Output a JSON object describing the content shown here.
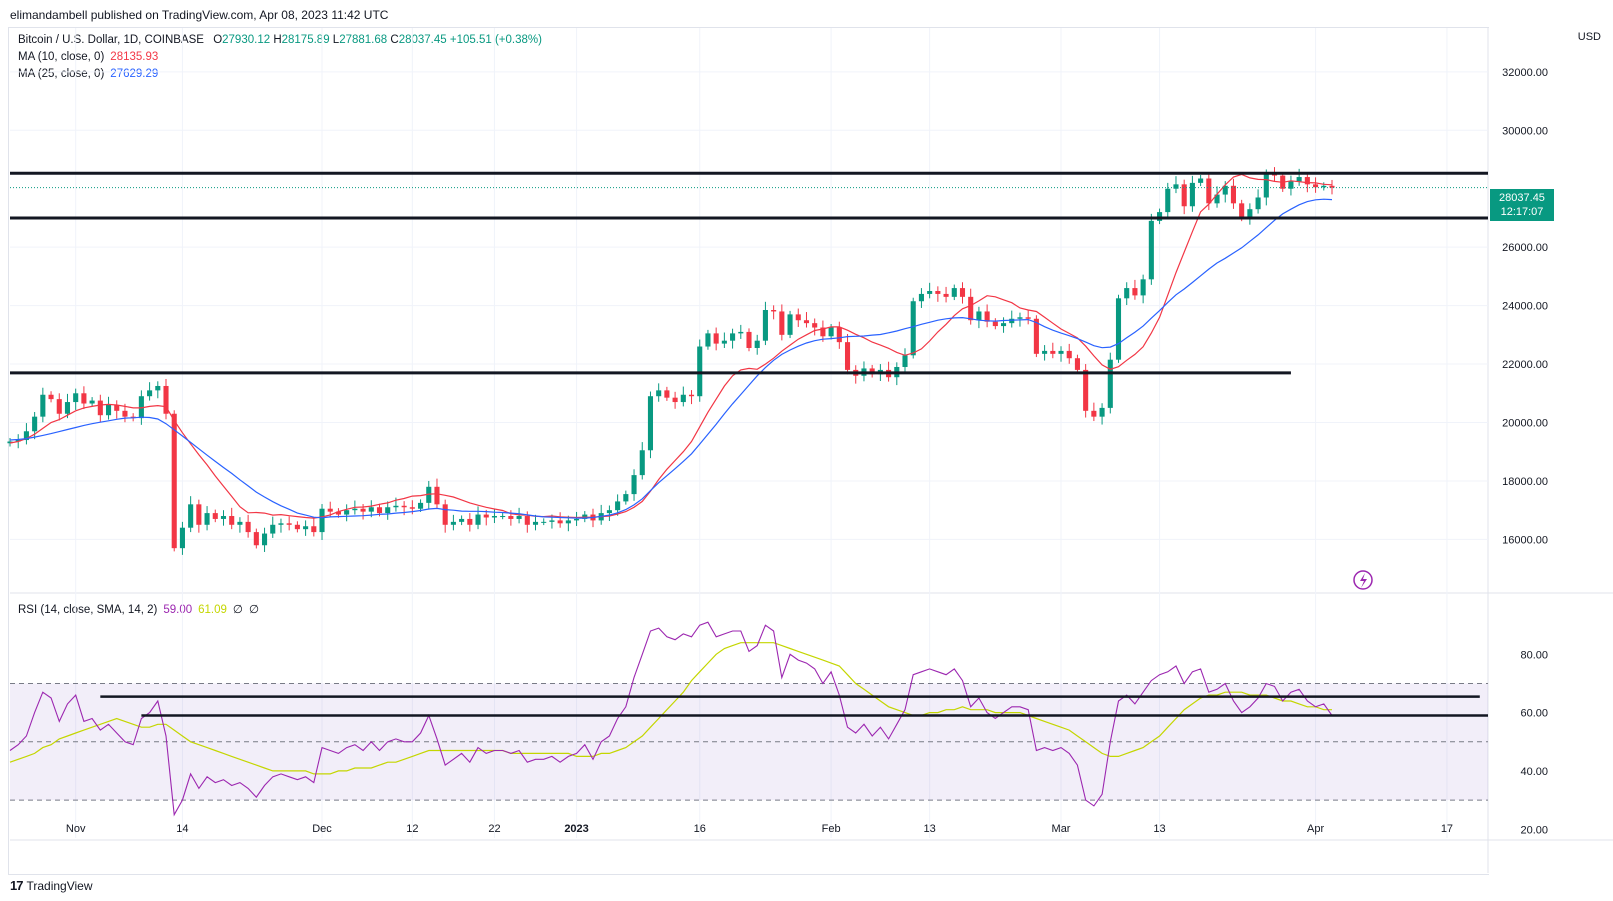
{
  "publisher": "elimandambell published on TradingView.com, Apr 08, 2023 11:42 UTC",
  "legend": {
    "title": "Bitcoin / U.S. Dollar, 1D, COINBASE",
    "o_label": "O",
    "o": "27930.12",
    "h_label": "H",
    "h": "28175.89",
    "l_label": "L",
    "l": "27881.68",
    "c_label": "C",
    "c": "28037.45",
    "change": "+105.51 (+0.38%)",
    "ma10_label": "MA (10, close, 0)",
    "ma10": "28135.93",
    "ma25_label": "MA (25, close, 0)",
    "ma25": "27629.29",
    "rsi_label": "RSI (14, close, SMA, 14, 2)",
    "rsi": "59.00",
    "rsi_sma": "61.09",
    "rsi_z1": "∅",
    "rsi_z2": "∅"
  },
  "currency": "USD",
  "price_tag": {
    "price": "28037.45",
    "countdown": "12:17:07"
  },
  "footer": {
    "brand": "TradingView",
    "logo_icon": "tradingview-logo-icon"
  },
  "colors": {
    "up": "#089981",
    "down": "#f23645",
    "ma10": "#f23645",
    "ma25": "#2962ff",
    "rsi": "#9c27b0",
    "rsi_sma": "#c4d600",
    "bands": "#7e57c2"
  },
  "chart_data": [
    {
      "type": "candlestick",
      "title": "Bitcoin / U.S. Dollar, 1D, COINBASE",
      "ylabel": "USD",
      "ylim": [
        14200,
        33500
      ],
      "yticks": [
        "16000.00",
        "18000.00",
        "20000.00",
        "22000.00",
        "24000.00",
        "26000.00",
        "30000.00",
        "32000.00"
      ],
      "xticks": [
        {
          "label": "Nov",
          "day": 0
        },
        {
          "label": "14",
          "day": 13
        },
        {
          "label": "Dec",
          "day": 30
        },
        {
          "label": "12",
          "day": 41
        },
        {
          "label": "22",
          "day": 51
        },
        {
          "label": "2023",
          "day": 61
        },
        {
          "label": "16",
          "day": 76
        },
        {
          "label": "Feb",
          "day": 92
        },
        {
          "label": "13",
          "day": 104
        },
        {
          "label": "Mar",
          "day": 120
        },
        {
          "label": "13",
          "day": 132
        },
        {
          "label": "Apr",
          "day": 151
        },
        {
          "label": "17",
          "day": 167
        }
      ],
      "x_range_days": [
        -8,
        172
      ],
      "first_day": -8,
      "closes": [
        19350,
        19400,
        19700,
        20200,
        20950,
        20800,
        20300,
        20700,
        21000,
        20650,
        20750,
        20250,
        20600,
        20400,
        20200,
        20150,
        20900,
        21100,
        21250,
        20300,
        15700,
        16400,
        17200,
        16500,
        16900,
        16700,
        16800,
        16500,
        16600,
        16250,
        15800,
        16200,
        16500,
        16550,
        16500,
        16350,
        16450,
        16250,
        17050,
        16950,
        16850,
        17000,
        17050,
        16950,
        17100,
        16900,
        17100,
        17150,
        17100,
        17050,
        17250,
        17800,
        17200,
        16500,
        16600,
        16700,
        16500,
        16850,
        16750,
        16800,
        16800,
        16700,
        16800,
        16500,
        16600,
        16600,
        16650,
        16550,
        16650,
        16700,
        16850,
        16650,
        16900,
        17000,
        17300,
        17550,
        18200,
        19050,
        20900,
        21100,
        20850,
        20700,
        20950,
        20900,
        22600,
        23050,
        22700,
        22800,
        23050,
        23100,
        22550,
        22800,
        23850,
        23800,
        23000,
        23700,
        23500,
        23400,
        23250,
        22950,
        23250,
        22750,
        21800,
        21600,
        21850,
        21650,
        21800,
        21550,
        21900,
        22300,
        24150,
        24400,
        24500,
        24400,
        24300,
        24600,
        24300,
        23500,
        23800,
        23450,
        23300,
        23400,
        23550,
        23600,
        23550,
        22350,
        22450,
        22350,
        22450,
        22200,
        21800,
        20400,
        20200,
        20500,
        22150,
        24250,
        24600,
        24350,
        24900,
        26900,
        27200,
        28000,
        28150,
        27400,
        28200,
        28350,
        27500,
        27800,
        28100,
        27500,
        27000,
        27300,
        27700,
        28500,
        28450,
        28000,
        28250,
        28400,
        28150,
        28050,
        28100,
        28037
      ],
      "ma10": [
        19300,
        19350,
        19450,
        19600,
        19800,
        20000,
        20100,
        20250,
        20400,
        20500,
        20550,
        20600,
        20620,
        20600,
        20550,
        20500,
        20500,
        20550,
        20580,
        20540,
        20070,
        19650,
        19270,
        18900,
        18550,
        18170,
        17820,
        17470,
        17120,
        16910,
        16920,
        16900,
        16830,
        16850,
        16810,
        16780,
        16750,
        16730,
        16770,
        16840,
        16950,
        17030,
        17100,
        17110,
        17140,
        17200,
        17250,
        17340,
        17400,
        17480,
        17500,
        17550,
        17560,
        17510,
        17450,
        17350,
        17250,
        17170,
        17100,
        17040,
        16990,
        16880,
        16840,
        16830,
        16790,
        16780,
        16800,
        16770,
        16760,
        16750,
        16760,
        16760,
        16780,
        16800,
        16870,
        16950,
        17100,
        17300,
        17650,
        18050,
        18400,
        18700,
        19000,
        19350,
        19850,
        20350,
        20800,
        21250,
        21600,
        21800,
        21850,
        21820,
        22000,
        22200,
        22440,
        22650,
        22850,
        23000,
        23150,
        23200,
        23270,
        23270,
        23160,
        23020,
        22900,
        22750,
        22650,
        22540,
        22400,
        22300,
        22380,
        22520,
        22790,
        23100,
        23360,
        23660,
        23890,
        24000,
        24160,
        24340,
        24300,
        24200,
        24100,
        23920,
        23850,
        23800,
        23600,
        23400,
        23200,
        23050,
        22900,
        22610,
        22280,
        21970,
        21820,
        21910,
        22130,
        22330,
        22590,
        23060,
        23600,
        24360,
        25130,
        25830,
        26530,
        27210,
        27470,
        27810,
        28130,
        28400,
        28490,
        28370,
        28320,
        28310,
        28250,
        28220,
        28270,
        28240,
        28210,
        28200,
        28150,
        28136
      ],
      "ma25": [
        19400,
        19420,
        19450,
        19500,
        19560,
        19620,
        19690,
        19760,
        19830,
        19900,
        19960,
        20010,
        20060,
        20110,
        20150,
        20160,
        20180,
        20170,
        20120,
        19960,
        19750,
        19540,
        19320,
        19100,
        18880,
        18670,
        18460,
        18260,
        18040,
        17830,
        17620,
        17450,
        17290,
        17150,
        17030,
        16900,
        16830,
        16760,
        16740,
        16770,
        16780,
        16790,
        16800,
        16810,
        16830,
        16860,
        16870,
        16900,
        16920,
        16950,
        16990,
        17040,
        17060,
        17020,
        17000,
        16970,
        16960,
        16960,
        16950,
        16930,
        16920,
        16900,
        16880,
        16840,
        16800,
        16770,
        16760,
        16750,
        16740,
        16730,
        16730,
        16750,
        16790,
        16830,
        16910,
        17020,
        17180,
        17390,
        17670,
        17940,
        18180,
        18420,
        18670,
        18930,
        19260,
        19600,
        19940,
        20300,
        20640,
        20960,
        21280,
        21600,
        21880,
        22130,
        22330,
        22480,
        22610,
        22720,
        22800,
        22850,
        22870,
        22900,
        22940,
        22950,
        22960,
        22990,
        23010,
        23070,
        23130,
        23210,
        23280,
        23360,
        23430,
        23500,
        23550,
        23580,
        23590,
        23550,
        23500,
        23480,
        23470,
        23490,
        23500,
        23510,
        23520,
        23420,
        23280,
        23160,
        23060,
        22970,
        22870,
        22750,
        22630,
        22560,
        22580,
        22700,
        22900,
        23090,
        23300,
        23570,
        23830,
        24110,
        24370,
        24570,
        24790,
        25020,
        25250,
        25460,
        25620,
        25800,
        25980,
        26200,
        26420,
        26670,
        26920,
        27140,
        27300,
        27450,
        27560,
        27620,
        27640,
        27629
      ],
      "levels": [
        {
          "price": 28530,
          "from_day": -8,
          "to_day": 172
        },
        {
          "price": 27000,
          "from_day": -8,
          "to_day": 172
        },
        {
          "price": 21700,
          "from_day": -8,
          "to_day": 148
        }
      ],
      "last_price": 28037.45
    },
    {
      "type": "line",
      "title": "RSI (14, close, SMA, 14, 2)",
      "ylim": [
        17,
        100
      ],
      "yticks": [
        "20.00",
        "40.00",
        "60.00",
        "80.00"
      ],
      "bands": [
        30,
        50,
        70
      ],
      "rsi": [
        47,
        49,
        52,
        60,
        67,
        65,
        57,
        63,
        66,
        57,
        58,
        54,
        56,
        53,
        50,
        49,
        58,
        60,
        64,
        52,
        25,
        30,
        39,
        34,
        38,
        36,
        37,
        35,
        36,
        34,
        31,
        35,
        38,
        39,
        38,
        37,
        38,
        36,
        48,
        47,
        46,
        48,
        49,
        47,
        50,
        47,
        50,
        51,
        50,
        50,
        53,
        59,
        51,
        42,
        44,
        46,
        43,
        48,
        46,
        47,
        47,
        46,
        47,
        43,
        44,
        44,
        45,
        43,
        45,
        46,
        49,
        44,
        50,
        52,
        58,
        62,
        72,
        80,
        88,
        89,
        86,
        85,
        87,
        86,
        90,
        91,
        86,
        87,
        88,
        88,
        81,
        83,
        90,
        88,
        72,
        80,
        78,
        77,
        75,
        70,
        74,
        66,
        55,
        53,
        56,
        52,
        55,
        51,
        56,
        61,
        73,
        74,
        75,
        74,
        73,
        75,
        71,
        62,
        65,
        60,
        58,
        60,
        62,
        62,
        61,
        47,
        48,
        47,
        48,
        46,
        42,
        30,
        28,
        32,
        50,
        64,
        66,
        63,
        67,
        71,
        73,
        74,
        76,
        70,
        74,
        75,
        67,
        68,
        70,
        64,
        60,
        62,
        65,
        70,
        69,
        64,
        67,
        68,
        64,
        62,
        63,
        59
      ],
      "rsi_sma": [
        43,
        44,
        45,
        46,
        48,
        49,
        51,
        52,
        53,
        54,
        55,
        56,
        57,
        58,
        57,
        56,
        55,
        55,
        56,
        56,
        54,
        52,
        50,
        49,
        48,
        47,
        46,
        45,
        44,
        43,
        42,
        41,
        40,
        40,
        40,
        40,
        40,
        39,
        39,
        39,
        40,
        40,
        41,
        41,
        41,
        42,
        43,
        43,
        44,
        45,
        46,
        47,
        47,
        47,
        47,
        47,
        47,
        47,
        47,
        47,
        47,
        46,
        46,
        46,
        46,
        46,
        46,
        46,
        46,
        45,
        45,
        45,
        46,
        46,
        47,
        48,
        50,
        52,
        55,
        58,
        61,
        64,
        67,
        71,
        74,
        77,
        80,
        82,
        83,
        84,
        84,
        84,
        84,
        84,
        83,
        82,
        81,
        80,
        79,
        78,
        77,
        76,
        73,
        70,
        68,
        66,
        64,
        62,
        61,
        60,
        59,
        59,
        60,
        60,
        61,
        61,
        62,
        61,
        61,
        61,
        60,
        60,
        60,
        60,
        59,
        58,
        57,
        56,
        55,
        54,
        52,
        50,
        48,
        46,
        45,
        45,
        46,
        47,
        48,
        50,
        52,
        55,
        58,
        61,
        63,
        65,
        66,
        66,
        67,
        67,
        67,
        66,
        66,
        66,
        65,
        64,
        64,
        63,
        62,
        62,
        61,
        61
      ],
      "levels": [
        {
          "value": 65.5,
          "from_day": 3,
          "to_day": 171
        },
        {
          "value": 59,
          "from_day": 8,
          "to_day": 172
        }
      ]
    }
  ]
}
